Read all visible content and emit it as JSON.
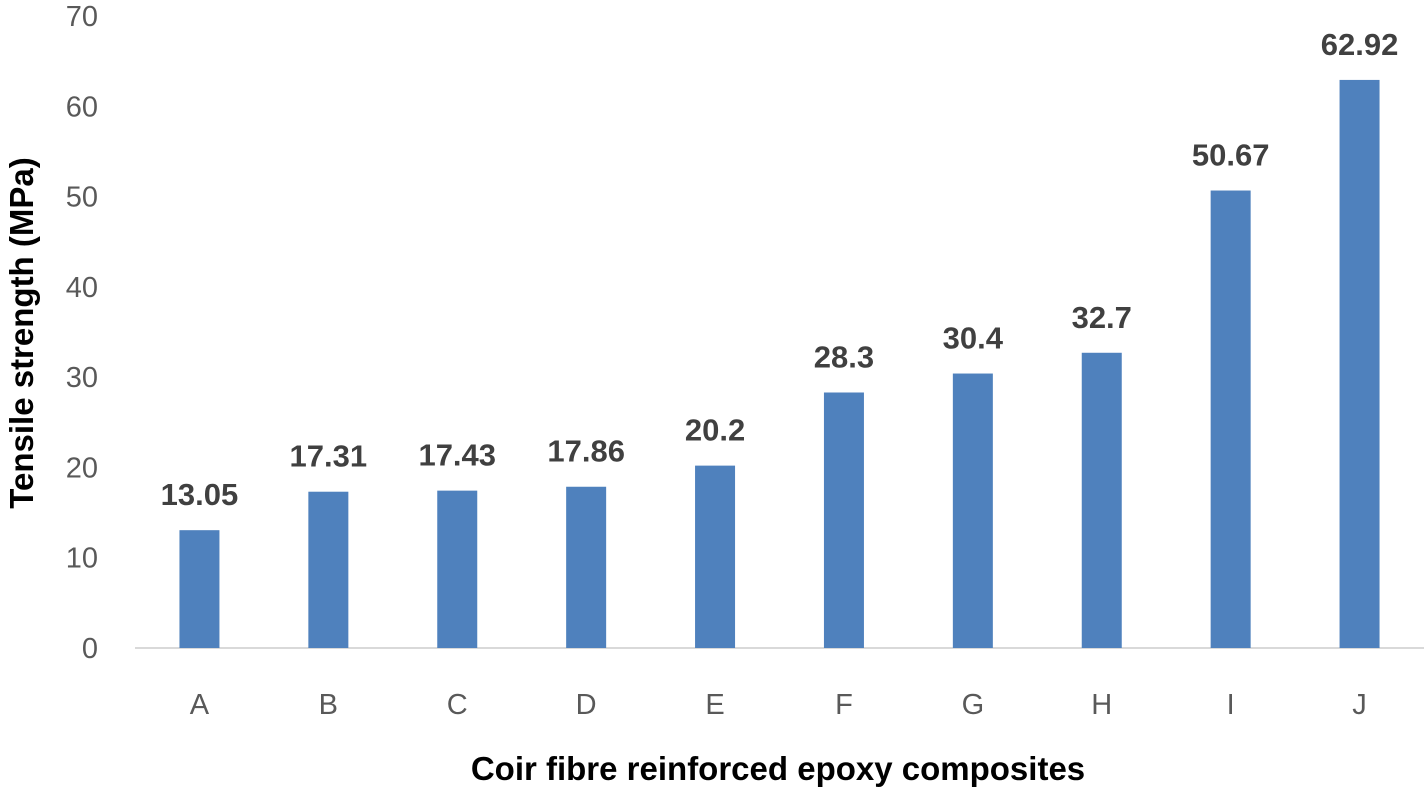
{
  "chart_data": {
    "type": "bar",
    "title": "",
    "xlabel": "Coir fibre reinforced epoxy composites",
    "ylabel": "Tensile strength (MPa)",
    "categories": [
      "A",
      "B",
      "C",
      "D",
      "E",
      "F",
      "G",
      "H",
      "I",
      "J"
    ],
    "values": [
      13.05,
      17.31,
      17.43,
      17.86,
      20.2,
      28.3,
      30.4,
      32.7,
      50.67,
      62.92
    ],
    "value_labels": [
      "13.05",
      "17.31",
      "17.43",
      "17.86",
      "20.2",
      "28.3",
      "30.4",
      "32.7",
      "50.67",
      "62.92"
    ],
    "ylim": [
      0,
      70
    ],
    "yticks": [
      "0",
      "10",
      "20",
      "30",
      "40",
      "50",
      "60",
      "70"
    ],
    "grid": false,
    "legend": "none",
    "bar_color": "#4f81bd"
  }
}
